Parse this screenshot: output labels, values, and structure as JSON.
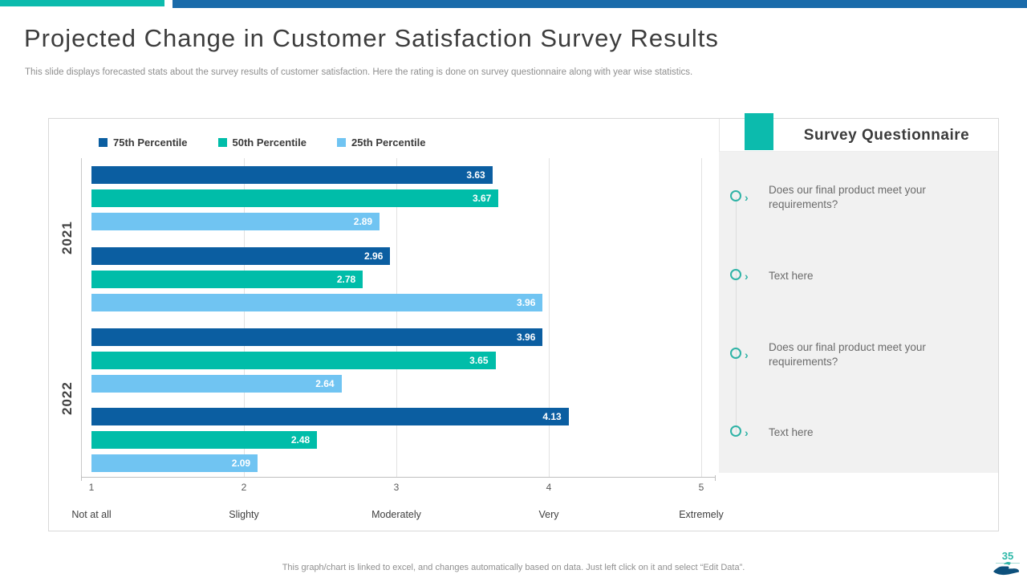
{
  "slide": {
    "title": "Projected Change in Customer Satisfaction Survey Results",
    "subtitle": "This slide displays forecasted stats about the survey results of customer satisfaction. Here the rating is done on survey questionnaire along with year wise statistics.",
    "footer_note": "This graph/chart is linked to excel, and changes automatically based on data. Just left click on it and select “Edit Data”.",
    "page_number": "35"
  },
  "colors": {
    "top_bar_left": "#0cbbad",
    "top_bar_right": "#1a6baa",
    "series_75th": "#0b5ea1",
    "series_50th": "#00bda9",
    "series_25th": "#70c4f2",
    "panel_gray": "#f1f1f1",
    "accent_teal": "#2fb3a6",
    "hand_navy": "#0d507c"
  },
  "chart_data": {
    "type": "bar",
    "orientation": "horizontal",
    "title": "",
    "legend_position": "top",
    "grid": true,
    "legend": [
      {
        "label": "75th  Percentile",
        "color": "#0b5ea1"
      },
      {
        "label": "50th Percentile",
        "color": "#00bda9"
      },
      {
        "label": "25th Percentile",
        "color": "#70c4f2"
      }
    ],
    "x_axis": {
      "min": 1,
      "max": 5,
      "ticks": [
        1,
        2,
        3,
        4,
        5
      ],
      "tick_labels": [
        "Not at all",
        "Slighty",
        "Moderately",
        "Very",
        "Extremely"
      ]
    },
    "groups": [
      {
        "year": "2021",
        "clusters": [
          [
            3.63,
            3.67,
            2.89
          ],
          [
            2.96,
            2.78,
            3.96
          ]
        ]
      },
      {
        "year": "2022",
        "clusters": [
          [
            3.96,
            3.65,
            2.64
          ],
          [
            4.13,
            2.48,
            2.09
          ]
        ]
      }
    ]
  },
  "survey_panel": {
    "title": "Survey Questionnaire",
    "items": [
      "Does our final product meet your requirements?",
      "Text here",
      "Does our final product meet your requirements?",
      "Text here"
    ]
  }
}
